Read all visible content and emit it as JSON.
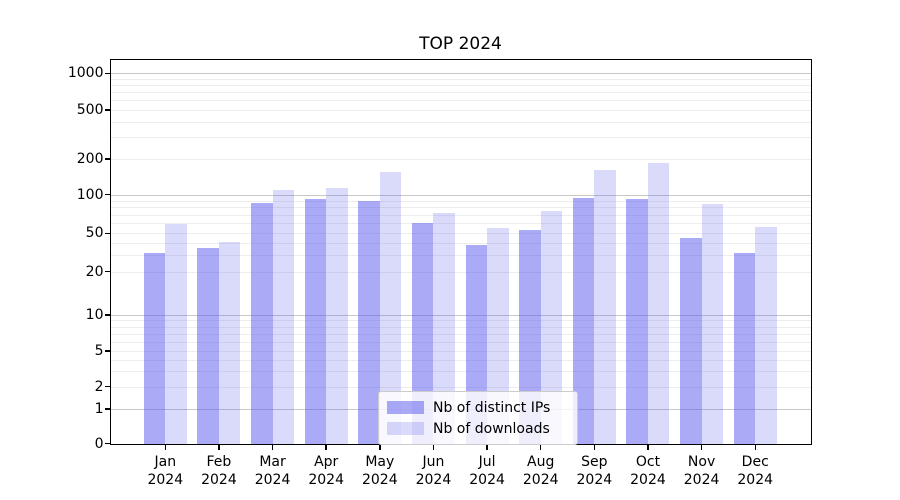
{
  "chart_data": {
    "type": "bar",
    "title": "TOP 2024",
    "categories": [
      "Jan 2024",
      "Feb 2024",
      "Mar 2024",
      "Apr 2024",
      "May 2024",
      "Jun 2024",
      "Jul 2024",
      "Aug 2024",
      "Sep 2024",
      "Oct 2024",
      "Nov 2024",
      "Dec 2024"
    ],
    "series": [
      {
        "name": "Nb of distinct IPs",
        "color": "rgba(85,85,238,0.5)",
        "values": [
          31,
          35,
          86,
          93,
          90,
          60,
          38,
          53,
          95,
          93,
          45,
          31
        ]
      },
      {
        "name": "Nb of downloads",
        "color": "rgba(85,85,238,0.22)",
        "values": [
          59,
          41,
          110,
          115,
          155,
          72,
          55,
          75,
          163,
          185,
          84,
          56
        ]
      }
    ],
    "yticks": [
      0,
      1,
      2,
      5,
      10,
      20,
      50,
      100,
      200,
      500,
      1000
    ],
    "yscale": "symlog",
    "ylim": [
      0,
      1200
    ],
    "xlabel": "",
    "ylabel": "",
    "grid": true,
    "legend_position": "lower center"
  },
  "colors": {
    "bar_distinct_ips": "#aaaaf5",
    "bar_downloads": "#dcdcf8",
    "grid_major": "#c8c8c8",
    "grid_minor": "#ededed",
    "axis": "#000000",
    "background": "#ffffff"
  }
}
